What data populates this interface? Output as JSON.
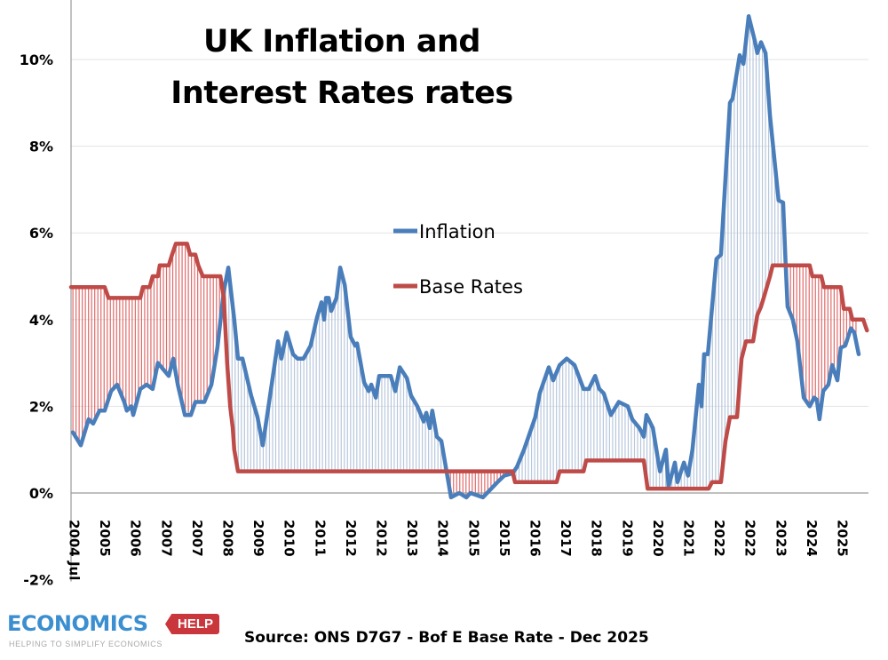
{
  "chart_data": {
    "type": "line",
    "title": "UK Inflation and Interest Rates rates",
    "title_lines": [
      "UK Inflation and",
      "Interest Rates rates"
    ],
    "xlabel": "",
    "ylabel": "",
    "x_tick_labels": [
      "2004 Jul",
      "2005",
      "2006",
      "2007",
      "2007",
      "2008",
      "2009",
      "2010",
      "2011",
      "2012",
      "2012",
      "2013",
      "2014",
      "2015",
      "2015",
      "2016",
      "2017",
      "2018",
      "2019",
      "2020",
      "2021",
      "2022",
      "2022",
      "2023",
      "2024",
      "2025"
    ],
    "xlim": [
      2004.6,
      2025.9
    ],
    "ylim": [
      -2,
      11
    ],
    "y_ticks": [
      -2,
      0,
      2,
      4,
      6,
      8,
      10
    ],
    "y_tick_labels": [
      "-2%",
      "0%",
      "2%",
      "4%",
      "6%",
      "8%",
      "10%"
    ],
    "grid": true,
    "legend_position": "center",
    "series": [
      {
        "name": "Inflation",
        "color": "#4a7ebb",
        "points": [
          [
            2004.65,
            1.4
          ],
          [
            2004.86,
            1.1
          ],
          [
            2005.07,
            1.7
          ],
          [
            2005.19,
            1.6
          ],
          [
            2005.36,
            1.9
          ],
          [
            2005.5,
            1.9
          ],
          [
            2005.67,
            2.35
          ],
          [
            2005.83,
            2.5
          ],
          [
            2006.02,
            2.1
          ],
          [
            2006.09,
            1.9
          ],
          [
            2006.21,
            2.0
          ],
          [
            2006.26,
            1.8
          ],
          [
            2006.45,
            2.4
          ],
          [
            2006.62,
            2.5
          ],
          [
            2006.78,
            2.4
          ],
          [
            2006.92,
            3.0
          ],
          [
            2007.21,
            2.7
          ],
          [
            2007.33,
            3.1
          ],
          [
            2007.45,
            2.5
          ],
          [
            2007.64,
            1.8
          ],
          [
            2007.8,
            1.8
          ],
          [
            2007.92,
            2.1
          ],
          [
            2008.16,
            2.1
          ],
          [
            2008.35,
            2.5
          ],
          [
            2008.51,
            3.35
          ],
          [
            2008.68,
            4.65
          ],
          [
            2008.8,
            5.2
          ],
          [
            2008.96,
            4.0
          ],
          [
            2009.06,
            3.1
          ],
          [
            2009.18,
            3.1
          ],
          [
            2009.41,
            2.25
          ],
          [
            2009.58,
            1.75
          ],
          [
            2009.72,
            1.1
          ],
          [
            2010.13,
            3.5
          ],
          [
            2010.22,
            3.1
          ],
          [
            2010.36,
            3.7
          ],
          [
            2010.53,
            3.2
          ],
          [
            2010.65,
            3.1
          ],
          [
            2010.81,
            3.1
          ],
          [
            2011.0,
            3.4
          ],
          [
            2011.17,
            4.05
          ],
          [
            2011.29,
            4.4
          ],
          [
            2011.36,
            4.0
          ],
          [
            2011.41,
            4.5
          ],
          [
            2011.48,
            4.5
          ],
          [
            2011.55,
            4.2
          ],
          [
            2011.69,
            4.5
          ],
          [
            2011.79,
            5.2
          ],
          [
            2011.91,
            4.8
          ],
          [
            2012.07,
            3.6
          ],
          [
            2012.19,
            3.4
          ],
          [
            2012.24,
            3.45
          ],
          [
            2012.43,
            2.55
          ],
          [
            2012.55,
            2.35
          ],
          [
            2012.62,
            2.5
          ],
          [
            2012.74,
            2.2
          ],
          [
            2012.83,
            2.7
          ],
          [
            2013.14,
            2.7
          ],
          [
            2013.26,
            2.35
          ],
          [
            2013.38,
            2.9
          ],
          [
            2013.57,
            2.65
          ],
          [
            2013.68,
            2.25
          ],
          [
            2013.85,
            2.0
          ],
          [
            2014.02,
            1.65
          ],
          [
            2014.09,
            1.85
          ],
          [
            2014.18,
            1.5
          ],
          [
            2014.25,
            1.9
          ],
          [
            2014.37,
            1.3
          ],
          [
            2014.49,
            1.2
          ],
          [
            2014.75,
            -0.1
          ],
          [
            2014.97,
            0.0
          ],
          [
            2015.16,
            -0.1
          ],
          [
            2015.27,
            0.0
          ],
          [
            2015.6,
            -0.1
          ],
          [
            2015.99,
            0.25
          ],
          [
            2016.17,
            0.4
          ],
          [
            2016.39,
            0.45
          ],
          [
            2016.51,
            0.6
          ],
          [
            2016.7,
            1.0
          ],
          [
            2017.0,
            1.75
          ],
          [
            2017.12,
            2.3
          ],
          [
            2017.36,
            2.9
          ],
          [
            2017.48,
            2.6
          ],
          [
            2017.65,
            2.95
          ],
          [
            2017.84,
            3.1
          ],
          [
            2018.05,
            2.95
          ],
          [
            2018.29,
            2.4
          ],
          [
            2018.43,
            2.4
          ],
          [
            2018.6,
            2.7
          ],
          [
            2018.71,
            2.4
          ],
          [
            2018.83,
            2.3
          ],
          [
            2019.02,
            1.8
          ],
          [
            2019.23,
            2.1
          ],
          [
            2019.47,
            2.0
          ],
          [
            2019.59,
            1.7
          ],
          [
            2019.78,
            1.5
          ],
          [
            2019.9,
            1.3
          ],
          [
            2019.97,
            1.8
          ],
          [
            2020.14,
            1.5
          ],
          [
            2020.33,
            0.5
          ],
          [
            2020.49,
            1.0
          ],
          [
            2020.56,
            0.15
          ],
          [
            2020.73,
            0.7
          ],
          [
            2020.8,
            0.25
          ],
          [
            2020.97,
            0.7
          ],
          [
            2021.08,
            0.4
          ],
          [
            2021.2,
            1.0
          ],
          [
            2021.37,
            2.5
          ],
          [
            2021.44,
            2.0
          ],
          [
            2021.51,
            3.2
          ],
          [
            2021.61,
            3.2
          ],
          [
            2021.84,
            5.4
          ],
          [
            2021.96,
            5.5
          ],
          [
            2022.2,
            9.0
          ],
          [
            2022.27,
            9.1
          ],
          [
            2022.46,
            10.1
          ],
          [
            2022.56,
            9.9
          ],
          [
            2022.7,
            11.0
          ],
          [
            2022.86,
            10.45
          ],
          [
            2022.93,
            10.15
          ],
          [
            2023.03,
            10.4
          ],
          [
            2023.15,
            10.15
          ],
          [
            2023.27,
            8.7
          ],
          [
            2023.5,
            6.75
          ],
          [
            2023.62,
            6.7
          ],
          [
            2023.69,
            5.25
          ],
          [
            2023.74,
            4.3
          ],
          [
            2023.88,
            4.0
          ],
          [
            2024.0,
            3.5
          ],
          [
            2024.17,
            2.2
          ],
          [
            2024.33,
            2.0
          ],
          [
            2024.45,
            2.2
          ],
          [
            2024.52,
            2.15
          ],
          [
            2024.59,
            1.7
          ],
          [
            2024.69,
            2.35
          ],
          [
            2024.83,
            2.5
          ],
          [
            2024.93,
            2.95
          ],
          [
            2025.07,
            2.6
          ],
          [
            2025.16,
            3.35
          ],
          [
            2025.28,
            3.4
          ],
          [
            2025.43,
            3.8
          ],
          [
            2025.52,
            3.7
          ],
          [
            2025.64,
            3.2
          ]
        ]
      },
      {
        "name": "Base Rates",
        "color": "#be4b48",
        "points": [
          [
            2004.6,
            4.75
          ],
          [
            2005.5,
            4.75
          ],
          [
            2005.6,
            4.5
          ],
          [
            2006.45,
            4.5
          ],
          [
            2006.52,
            4.75
          ],
          [
            2006.7,
            4.75
          ],
          [
            2006.78,
            5.0
          ],
          [
            2006.92,
            5.0
          ],
          [
            2006.97,
            5.25
          ],
          [
            2007.21,
            5.25
          ],
          [
            2007.3,
            5.5
          ],
          [
            2007.4,
            5.75
          ],
          [
            2007.7,
            5.75
          ],
          [
            2007.78,
            5.5
          ],
          [
            2007.92,
            5.5
          ],
          [
            2008.0,
            5.25
          ],
          [
            2008.12,
            5.0
          ],
          [
            2008.59,
            5.0
          ],
          [
            2008.68,
            4.5
          ],
          [
            2008.77,
            3.0
          ],
          [
            2008.85,
            2.0
          ],
          [
            2008.92,
            1.5
          ],
          [
            2008.96,
            1.0
          ],
          [
            2009.06,
            0.5
          ],
          [
            2016.39,
            0.5
          ],
          [
            2016.46,
            0.25
          ],
          [
            2017.57,
            0.25
          ],
          [
            2017.65,
            0.5
          ],
          [
            2018.29,
            0.5
          ],
          [
            2018.36,
            0.75
          ],
          [
            2019.9,
            0.75
          ],
          [
            2020.0,
            0.1
          ],
          [
            2021.63,
            0.1
          ],
          [
            2021.72,
            0.25
          ],
          [
            2021.96,
            0.25
          ],
          [
            2022.08,
            1.2
          ],
          [
            2022.2,
            1.75
          ],
          [
            2022.39,
            1.75
          ],
          [
            2022.51,
            3.1
          ],
          [
            2022.63,
            3.5
          ],
          [
            2022.82,
            3.5
          ],
          [
            2022.93,
            4.1
          ],
          [
            2023.03,
            4.3
          ],
          [
            2023.1,
            4.5
          ],
          [
            2023.27,
            5.0
          ],
          [
            2023.34,
            5.25
          ],
          [
            2024.33,
            5.25
          ],
          [
            2024.4,
            5.0
          ],
          [
            2024.64,
            5.0
          ],
          [
            2024.71,
            4.75
          ],
          [
            2025.16,
            4.75
          ],
          [
            2025.24,
            4.25
          ],
          [
            2025.4,
            4.25
          ],
          [
            2025.47,
            4.0
          ],
          [
            2025.76,
            4.0
          ],
          [
            2025.86,
            3.75
          ]
        ]
      }
    ]
  },
  "footer": {
    "source": "Source: ONS D7G7 - Bof E Base Rate - Dec 2025",
    "logo_word": "ECONOMICS",
    "logo_tag": "HELP",
    "logo_tagline": "HELPING TO SIMPLIFY ECONOMICS"
  }
}
